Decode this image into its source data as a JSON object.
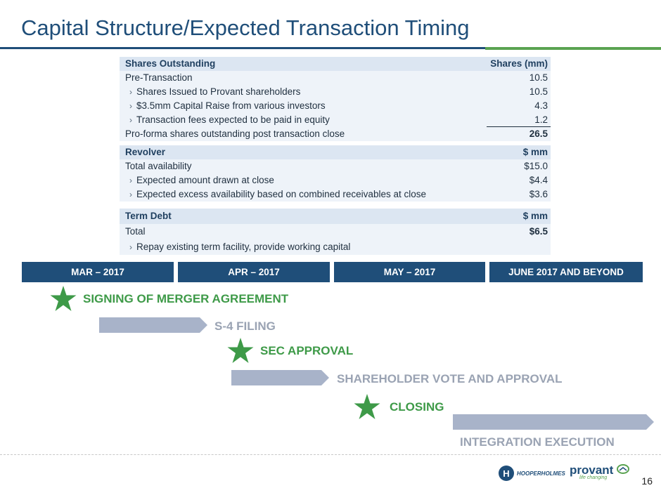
{
  "title": "Capital Structure/Expected Transaction Timing",
  "shares_table": {
    "header": {
      "label": "Shares Outstanding",
      "unit": "Shares (mm)"
    },
    "rows": [
      {
        "label": "Pre-Transaction",
        "value": "10.5"
      },
      {
        "label": "Shares Issued to Provant shareholders",
        "value": "10.5"
      },
      {
        "label": "$3.5mm Capital Raise from various investors",
        "value": "4.3"
      },
      {
        "label": "Transaction fees expected to be paid in equity",
        "value": "1.2"
      }
    ],
    "total": {
      "label": "Pro-forma shares outstanding post transaction close",
      "value": "26.5"
    }
  },
  "revolver_table": {
    "header": {
      "label": "Revolver",
      "unit": "$ mm"
    },
    "rows": [
      {
        "label": "Total availability",
        "value": "$15.0"
      },
      {
        "label": "Expected amount drawn at close",
        "value": "$4.4"
      },
      {
        "label": "Expected excess availability based on combined receivables at close",
        "value": "$3.6"
      }
    ]
  },
  "term_debt_table": {
    "header": {
      "label": "Term Debt",
      "unit": "$ mm"
    },
    "rows": [
      {
        "label": "Total",
        "value": "$6.5"
      },
      {
        "label": "Repay existing term facility, provide working capital",
        "value": ""
      }
    ]
  },
  "timeline": {
    "months": [
      "MAR – 2017",
      "APR – 2017",
      "MAY – 2017",
      "JUNE 2017 AND BEYOND"
    ],
    "events": {
      "signing": "SIGNING OF MERGER AGREEMENT",
      "s4": "S-4 FILING",
      "sec": "SEC APPROVAL",
      "vote": "SHAREHOLDER VOTE AND APPROVAL",
      "closing": "CLOSING",
      "integration": "INTEGRATION EXECUTION"
    }
  },
  "footer": {
    "hooper_logo": "HOOPERHOLMES",
    "provant_logo": "provant",
    "provant_tagline": "life changing",
    "page_number": "16"
  },
  "colors": {
    "title_blue": "#1f4e79",
    "accent_green": "#5aa351",
    "star_green": "#3e9a48",
    "arrow_grey": "#a8b3c9",
    "header_fill": "#dce6f2",
    "row_fill": "#eef3f9"
  }
}
